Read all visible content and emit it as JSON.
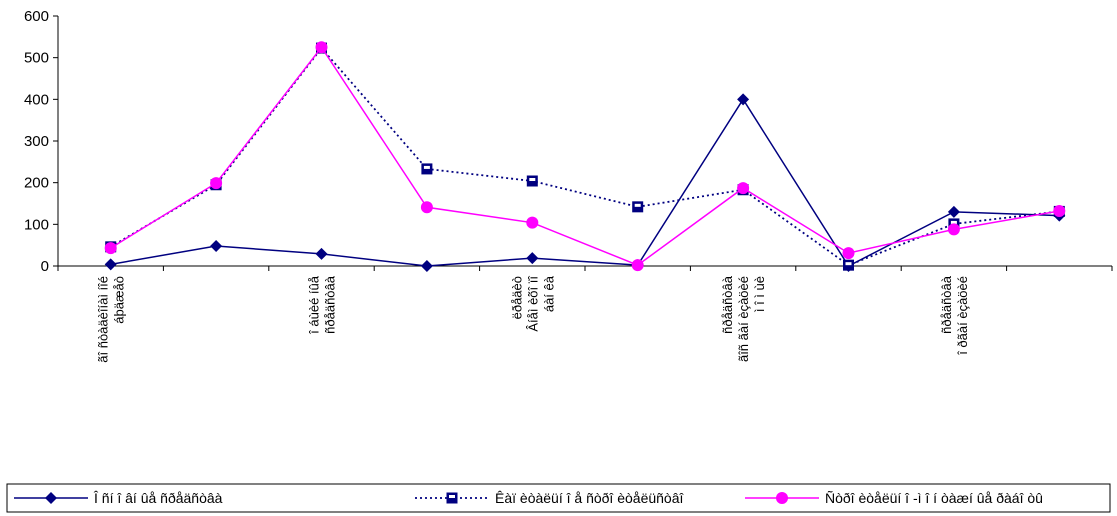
{
  "chart_data": {
    "type": "line",
    "title": "",
    "xlabel": "",
    "ylabel": "",
    "ylim": [
      0,
      600
    ],
    "yticks": [
      0,
      100,
      200,
      300,
      400,
      500,
      600
    ],
    "grid": false,
    "legend_position": "bottom",
    "categories": [
      [
        "ãî ñòàäèîíàì íîé",
        "áþäæåò"
      ],
      [
        ""
      ],
      [
        "î áùèé íûå",
        "ñðåäñòâà"
      ],
      [
        ""
      ],
      [
        "ëðåäèò",
        "Âíåì èõî ïî",
        "áàí êà"
      ],
      [
        ""
      ],
      [
        "ñðåäñòâà",
        "ãîñ ãàí èçàöèé",
        "ì î ì ùè"
      ],
      [
        ""
      ],
      [
        "ñðåäñòâà",
        "î ðãàí èçàöèé"
      ],
      [
        ""
      ]
    ],
    "series": [
      {
        "name": "Î ñí î âí ûå ñðåäñòâà",
        "color": "#000080",
        "marker": "diamond",
        "dash": "solid",
        "values": [
          4,
          48,
          29,
          0,
          19,
          2,
          400,
          0,
          130,
          121
        ]
      },
      {
        "name": "Êàï èòàëüí î å ñòðî èòåëüñòâî",
        "color": "#000080",
        "marker": "square",
        "dash": "dotted",
        "values": [
          46,
          195,
          523,
          233,
          204,
          142,
          183,
          2,
          101,
          131
        ]
      },
      {
        "name": "Ñòðî èòåëüí î -ì î í òàæí ûå ðàáî òû",
        "color": "#ff00ff",
        "marker": "circle",
        "dash": "solid",
        "values": [
          43,
          199,
          525,
          141,
          104,
          2,
          187,
          31,
          88,
          132
        ]
      }
    ]
  }
}
